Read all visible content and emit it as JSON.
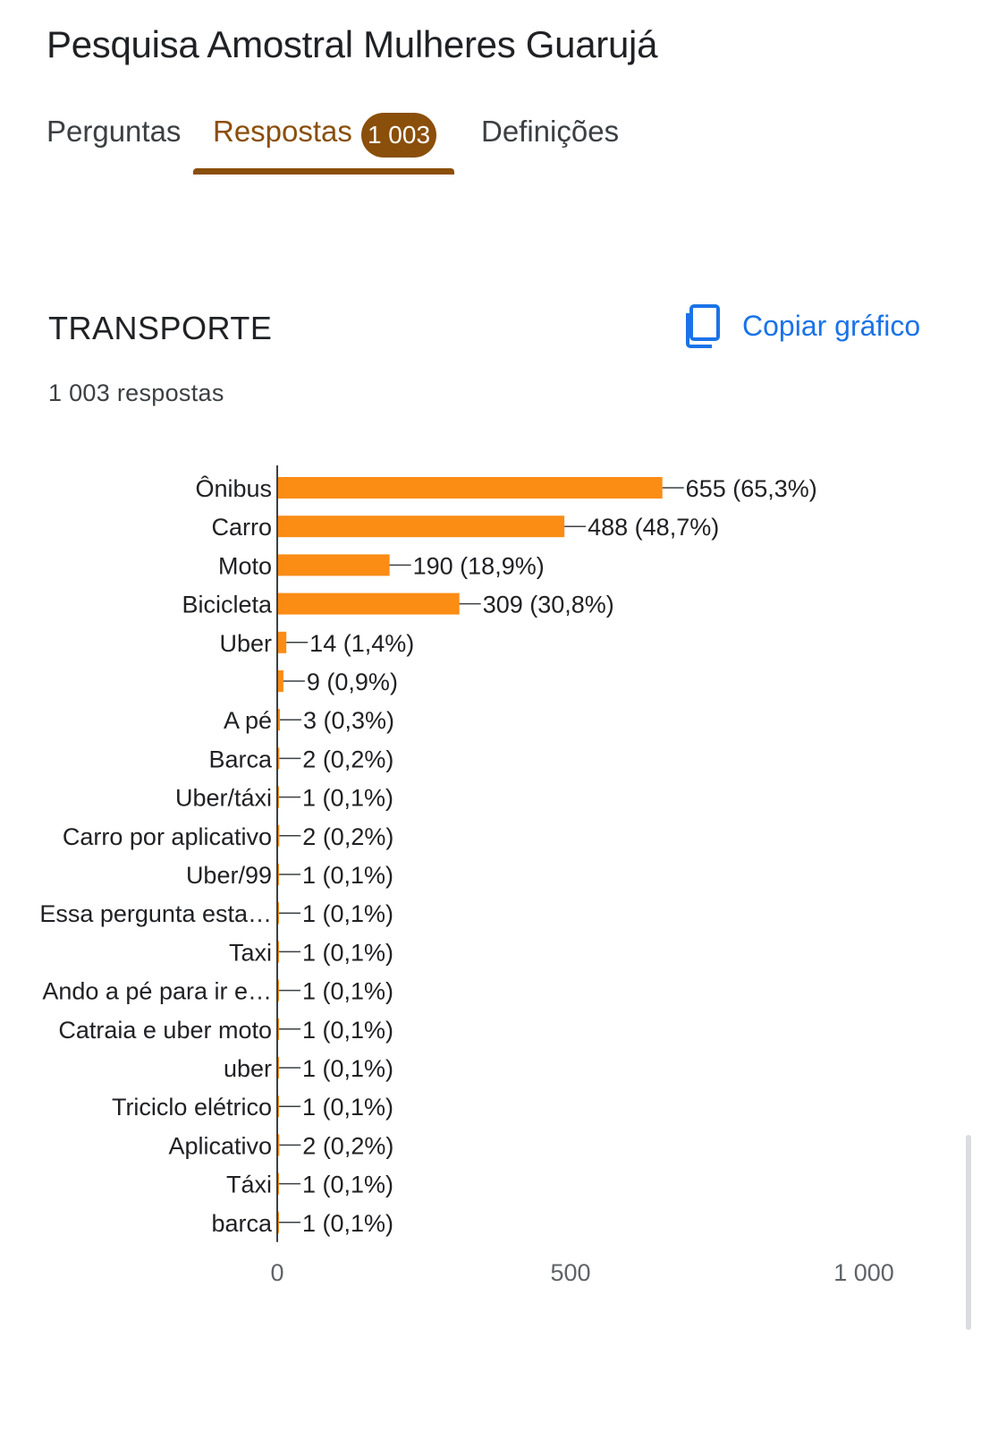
{
  "form": {
    "title": "Pesquisa Amostral Mulheres Guarujá"
  },
  "tabs": {
    "questions": "Perguntas",
    "responses": "Respostas",
    "responses_badge": "1 003",
    "settings": "Definições"
  },
  "section": {
    "title": "TRANSPORTE",
    "copy_button": "Copiar gráfico",
    "response_count": "1 003 respostas"
  },
  "colors": {
    "bar": "#fb8c14",
    "accent": "#8a4f0a",
    "link": "#1a73e8"
  },
  "icons": {
    "copy": "copy-icon"
  },
  "chart_data": {
    "type": "bar",
    "orientation": "horizontal",
    "categories": [
      "Ônibus",
      "Carro",
      "Moto",
      "Bicicleta",
      "Uber",
      "",
      "A pé",
      "Barca",
      "Uber/táxi",
      "Carro por aplicativo",
      "Uber/99",
      "Essa pergunta esta…",
      "Taxi",
      "Ando a pé para ir e…",
      "Catraia e uber moto",
      "uber",
      "Triciclo elétrico",
      "Aplicativo",
      "Táxi",
      "barca"
    ],
    "values": [
      655,
      488,
      190,
      309,
      14,
      9,
      3,
      2,
      1,
      2,
      1,
      1,
      1,
      1,
      1,
      1,
      1,
      2,
      1,
      1
    ],
    "value_labels": [
      "655 (65,3%)",
      "488 (48,7%)",
      "190 (18,9%)",
      "309 (30,8%)",
      "14 (1,4%)",
      "9 (0,9%)",
      "3 (0,3%)",
      "2 (0,2%)",
      "1 (0,1%)",
      "2 (0,2%)",
      "1 (0,1%)",
      "1 (0,1%)",
      "1 (0,1%)",
      "1 (0,1%)",
      "1 (0,1%)",
      "1 (0,1%)",
      "1 (0,1%)",
      "2 (0,2%)",
      "1 (0,1%)",
      "1 (0,1%)"
    ],
    "xticks": [
      0,
      500,
      1000
    ],
    "xtick_labels": [
      "0",
      "500",
      "1 000"
    ],
    "xlim": [
      0,
      1000
    ],
    "grid": false
  }
}
